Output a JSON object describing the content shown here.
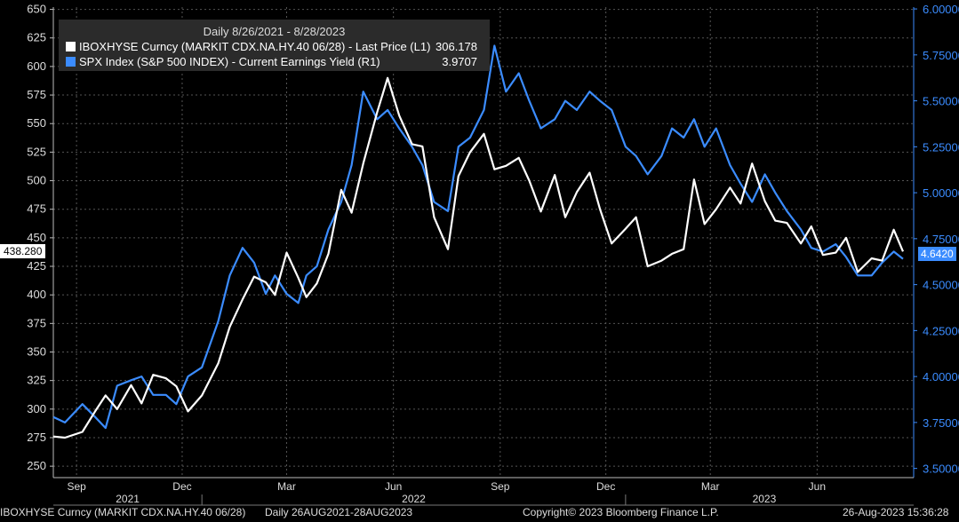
{
  "legend": {
    "title": "Daily 8/26/2021 - 8/28/2023",
    "series": [
      {
        "label": "IBOXHYSE Curncy (MARKIT CDX.NA.HY.40 06/28) - Last Price (L1)",
        "value": "306.178",
        "color": "#ffffff"
      },
      {
        "label": "SPX Index (S&P 500 INDEX) - Current Earnings Yield (R1)",
        "value": "3.9707",
        "color": "#3b8cff"
      }
    ]
  },
  "last_values": {
    "left": "438.280",
    "right": "4.6420"
  },
  "footer": {
    "ticker": "IBOXHYSE Curncy (MARKIT CDX.NA.HY.40 06/28)",
    "range": "Daily 26AUG2021-28AUG2023",
    "copyright": "Copyright© 2023 Bloomberg Finance L.P.",
    "timestamp": "26-Aug-2023 15:36:28"
  },
  "chart_data": {
    "type": "line",
    "left_axis": {
      "ticks": [
        "650",
        "625",
        "600",
        "575",
        "550",
        "525",
        "500",
        "475",
        "450",
        "425",
        "400",
        "375",
        "350",
        "325",
        "300",
        "275",
        "250"
      ],
      "ylim": [
        240,
        652
      ]
    },
    "right_axis": {
      "ticks": [
        "6.00000",
        "5.75000",
        "5.50000",
        "5.25000",
        "5.00000",
        "4.75000",
        "4.50000",
        "4.25000",
        "4.00000",
        "3.75000",
        "3.50000"
      ],
      "ylim": [
        3.45,
        6.01
      ]
    },
    "x_month_labels": [
      "Sep",
      "Dec",
      "Mar",
      "Jun",
      "Sep",
      "Dec",
      "Mar",
      "Jun"
    ],
    "x_year_labels": [
      "2021",
      "2022",
      "2023"
    ],
    "series": [
      {
        "name": "IBOXHYSE Curncy (MARKIT CDX.NA.HY.40 06/28) - Last Price (L1)",
        "axis": "left",
        "color": "#ffffff",
        "dates": [
          "2021-08-26",
          "2021-09-05",
          "2021-09-20",
          "2021-10-01",
          "2021-10-10",
          "2021-10-20",
          "2021-11-01",
          "2021-11-10",
          "2021-11-20",
          "2021-12-01",
          "2021-12-10",
          "2021-12-20",
          "2022-01-01",
          "2022-01-15",
          "2022-01-25",
          "2022-02-05",
          "2022-02-15",
          "2022-02-25",
          "2022-03-05",
          "2022-03-15",
          "2022-03-25",
          "2022-04-01",
          "2022-04-10",
          "2022-04-20",
          "2022-05-01",
          "2022-05-10",
          "2022-05-20",
          "2022-06-01",
          "2022-06-10",
          "2022-06-20",
          "2022-07-01",
          "2022-07-10",
          "2022-07-20",
          "2022-08-01",
          "2022-08-10",
          "2022-08-20",
          "2022-09-01",
          "2022-09-10",
          "2022-09-20",
          "2022-10-01",
          "2022-10-10",
          "2022-10-20",
          "2022-11-01",
          "2022-11-10",
          "2022-11-20",
          "2022-12-01",
          "2022-12-10",
          "2022-12-20",
          "2023-01-01",
          "2023-01-10",
          "2023-01-20",
          "2023-02-01",
          "2023-02-10",
          "2023-02-20",
          "2023-03-01",
          "2023-03-10",
          "2023-03-20",
          "2023-04-01",
          "2023-04-10",
          "2023-04-20",
          "2023-05-01",
          "2023-05-10",
          "2023-05-20",
          "2023-06-01",
          "2023-06-10",
          "2023-06-20",
          "2023-07-01",
          "2023-07-10",
          "2023-07-20",
          "2023-08-01",
          "2023-08-10",
          "2023-08-20",
          "2023-08-28"
        ],
        "values": [
          276,
          275,
          280,
          298,
          312,
          300,
          321,
          305,
          330,
          327,
          320,
          298,
          312,
          340,
          372,
          396,
          416,
          411,
          400,
          437,
          415,
          398,
          410,
          436,
          492,
          472,
          515,
          560,
          590,
          557,
          532,
          530,
          468,
          440,
          504,
          525,
          541,
          510,
          513,
          520,
          500,
          473,
          505,
          468,
          490,
          507,
          475,
          445,
          458,
          468,
          425,
          430,
          436,
          440,
          501,
          462,
          475,
          494,
          480,
          515,
          482,
          465,
          463,
          445,
          460,
          435,
          437,
          450,
          420,
          432,
          430,
          457,
          438
        ]
      },
      {
        "name": "SPX Index (S&P 500 INDEX) - Current Earnings Yield (R1)",
        "axis": "right",
        "color": "#3b8cff",
        "dates": [
          "2021-08-26",
          "2021-09-05",
          "2021-09-20",
          "2021-10-01",
          "2021-10-10",
          "2021-10-20",
          "2021-11-01",
          "2021-11-10",
          "2021-11-20",
          "2021-12-01",
          "2021-12-10",
          "2021-12-20",
          "2022-01-01",
          "2022-01-15",
          "2022-01-25",
          "2022-02-05",
          "2022-02-15",
          "2022-02-25",
          "2022-03-05",
          "2022-03-15",
          "2022-03-25",
          "2022-04-01",
          "2022-04-10",
          "2022-04-20",
          "2022-05-01",
          "2022-05-10",
          "2022-05-20",
          "2022-06-01",
          "2022-06-10",
          "2022-06-20",
          "2022-07-01",
          "2022-07-10",
          "2022-07-20",
          "2022-08-01",
          "2022-08-10",
          "2022-08-20",
          "2022-09-01",
          "2022-09-10",
          "2022-09-20",
          "2022-10-01",
          "2022-10-10",
          "2022-10-20",
          "2022-11-01",
          "2022-11-10",
          "2022-11-20",
          "2022-12-01",
          "2022-12-10",
          "2022-12-20",
          "2023-01-01",
          "2023-01-10",
          "2023-01-20",
          "2023-02-01",
          "2023-02-10",
          "2023-02-20",
          "2023-03-01",
          "2023-03-10",
          "2023-03-20",
          "2023-04-01",
          "2023-04-10",
          "2023-04-20",
          "2023-05-01",
          "2023-05-10",
          "2023-05-20",
          "2023-06-01",
          "2023-06-10",
          "2023-06-20",
          "2023-07-01",
          "2023-07-10",
          "2023-07-20",
          "2023-08-01",
          "2023-08-10",
          "2023-08-20",
          "2023-08-28"
        ],
        "values": [
          3.78,
          3.75,
          3.85,
          3.78,
          3.72,
          3.95,
          3.98,
          4.0,
          3.9,
          3.9,
          3.85,
          4.0,
          4.05,
          4.3,
          4.55,
          4.7,
          4.62,
          4.45,
          4.55,
          4.45,
          4.4,
          4.55,
          4.6,
          4.8,
          4.95,
          5.15,
          5.55,
          5.4,
          5.45,
          5.35,
          5.25,
          5.15,
          4.95,
          4.9,
          5.25,
          5.3,
          5.45,
          5.8,
          5.55,
          5.65,
          5.5,
          5.35,
          5.4,
          5.5,
          5.45,
          5.55,
          5.5,
          5.45,
          5.25,
          5.2,
          5.1,
          5.2,
          5.35,
          5.3,
          5.4,
          5.25,
          5.35,
          5.15,
          5.05,
          4.95,
          5.1,
          5.0,
          4.9,
          4.8,
          4.7,
          4.68,
          4.72,
          4.65,
          4.55,
          4.55,
          4.62,
          4.68,
          4.64
        ]
      }
    ]
  }
}
